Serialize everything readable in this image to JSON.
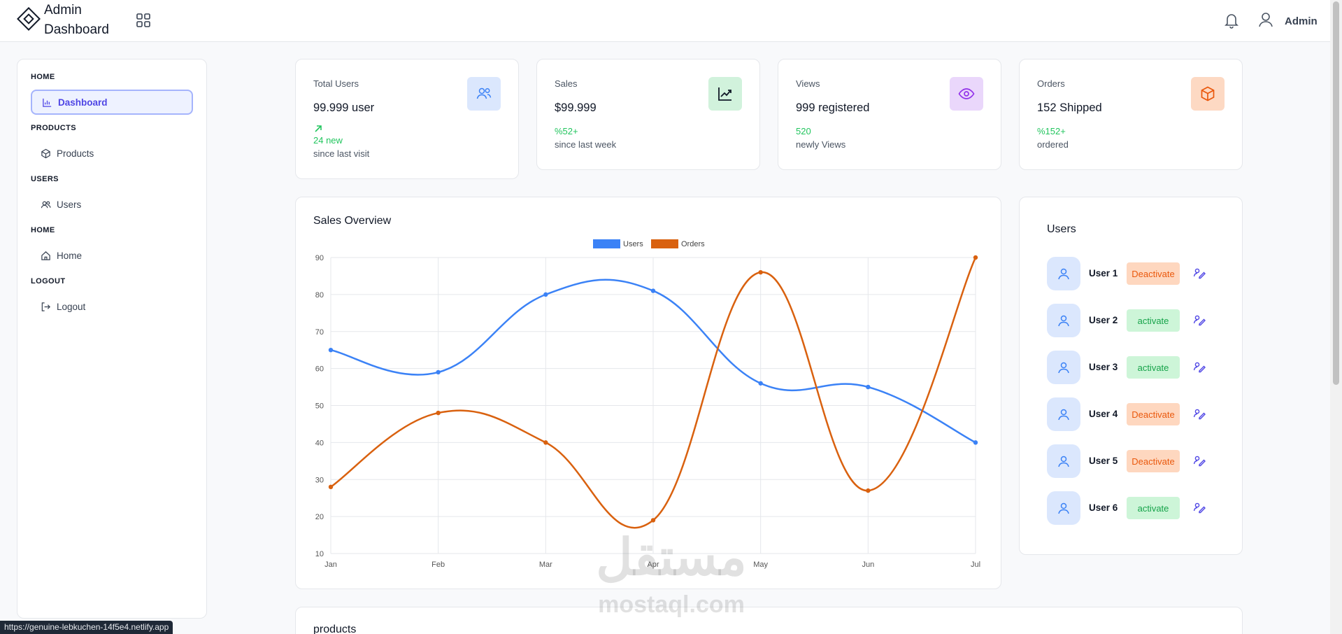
{
  "header": {
    "brand_line1": "Admin",
    "brand_line2": "Dashboard",
    "user_label": "Admin",
    "icons": [
      "logo-diamond-icon",
      "apps-grid-icon",
      "bell-icon",
      "user-icon"
    ]
  },
  "sidebar": {
    "sections": [
      {
        "label": "HOME",
        "item": {
          "label": "Dashboard",
          "icon": "bar-chart-icon",
          "active": true
        }
      },
      {
        "label": "PRODUCTS",
        "item": {
          "label": "Products",
          "icon": "box-icon",
          "active": false
        }
      },
      {
        "label": "USERS",
        "item": {
          "label": "Users",
          "icon": "users-icon",
          "active": false
        }
      },
      {
        "label": "HOME",
        "item": {
          "label": "Home",
          "icon": "home-icon",
          "active": false
        }
      },
      {
        "label": "LOGOUT",
        "item": {
          "label": "Logout",
          "icon": "logout-icon",
          "active": false
        }
      }
    ]
  },
  "stats": [
    {
      "title": "Total Users",
      "value": "99.999 user",
      "change": "24 new",
      "note": "since last visit",
      "icon": "users-icon",
      "icon_bg": "#dbe7fd",
      "icon_color": "#3b82f6"
    },
    {
      "title": "Sales",
      "value": "$99.999",
      "change": "%52+",
      "note": "since last week",
      "icon": "trending-chart-icon",
      "icon_bg": "#d1f2dc",
      "icon_color": "#111827"
    },
    {
      "title": "Views",
      "value": "999 registered",
      "change": "520",
      "note": "newly Views",
      "icon": "eye-icon",
      "icon_bg": "#ead7fb",
      "icon_color": "#9333ea"
    },
    {
      "title": "Orders",
      "value": "152 Shipped",
      "change": "%152+",
      "note": "ordered",
      "icon": "box-icon",
      "icon_bg": "#fdd9c3",
      "icon_color": "#ea580c"
    }
  ],
  "chart_card": {
    "title": "Sales Overview"
  },
  "chart_data": {
    "type": "line",
    "categories": [
      "Jan",
      "Feb",
      "Mar",
      "Apr",
      "May",
      "Jun",
      "Jul"
    ],
    "series": [
      {
        "name": "Users",
        "values": [
          65,
          59,
          80,
          81,
          56,
          55,
          40
        ],
        "color": "#3b82f6"
      },
      {
        "name": "Orders",
        "values": [
          28,
          48,
          40,
          19,
          86,
          27,
          90
        ],
        "color": "#d9610f"
      }
    ],
    "ylim": [
      10,
      90
    ],
    "yticks": [
      10,
      20,
      30,
      40,
      50,
      60,
      70,
      80,
      90
    ],
    "grid": true,
    "legend": "top-center",
    "title": "",
    "xlabel": "",
    "ylabel": ""
  },
  "users_panel": {
    "title": "Users",
    "users": [
      {
        "name": "User 1",
        "action": "Deactivate"
      },
      {
        "name": "User 2",
        "action": "activate"
      },
      {
        "name": "User 3",
        "action": "activate"
      },
      {
        "name": "User 4",
        "action": "Deactivate"
      },
      {
        "name": "User 5",
        "action": "Deactivate"
      },
      {
        "name": "User 6",
        "action": "activate"
      }
    ]
  },
  "products_card": {
    "title": "products"
  },
  "status_url": "https://genuine-lebkuchen-14f5e4.netlify.app",
  "watermark": {
    "arabic": "مستقل",
    "latin": "mostaql.com"
  }
}
